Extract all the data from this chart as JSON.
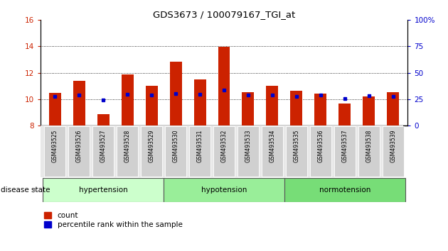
{
  "title": "GDS3673 / 100079167_TGI_at",
  "categories": [
    "GSM493525",
    "GSM493526",
    "GSM493527",
    "GSM493528",
    "GSM493529",
    "GSM493530",
    "GSM493531",
    "GSM493532",
    "GSM493533",
    "GSM493534",
    "GSM493535",
    "GSM493536",
    "GSM493537",
    "GSM493538",
    "GSM493539"
  ],
  "red_values": [
    10.5,
    11.4,
    8.85,
    11.9,
    11.0,
    12.85,
    11.5,
    13.95,
    10.55,
    11.0,
    10.65,
    10.4,
    9.65,
    10.2,
    10.55
  ],
  "blue_values": [
    10.2,
    10.3,
    9.95,
    10.35,
    10.3,
    10.4,
    10.35,
    10.7,
    10.3,
    10.3,
    10.2,
    10.3,
    10.05,
    10.25,
    10.2
  ],
  "ylim_left": [
    8,
    16
  ],
  "ylim_right": [
    0,
    100
  ],
  "yticks_left": [
    8,
    10,
    12,
    14,
    16
  ],
  "yticks_right": [
    0,
    25,
    50,
    75,
    100
  ],
  "bar_color": "#cc2200",
  "dot_color": "#0000cc",
  "groups": [
    {
      "label": "hypertension",
      "start": 0,
      "end": 4
    },
    {
      "label": "hypotension",
      "start": 5,
      "end": 9
    },
    {
      "label": "normotension",
      "start": 10,
      "end": 14
    }
  ],
  "group_colors": [
    "#ccffcc",
    "#99ee99",
    "#77dd77"
  ],
  "xlabel_bottom": "disease state",
  "legend_count_label": "count",
  "legend_pct_label": "percentile rank within the sample",
  "bar_width": 0.5,
  "left_axis_color": "#cc2200",
  "right_axis_color": "#0000cc",
  "bg_color": "#ffffff",
  "plot_bg_color": "#ffffff"
}
